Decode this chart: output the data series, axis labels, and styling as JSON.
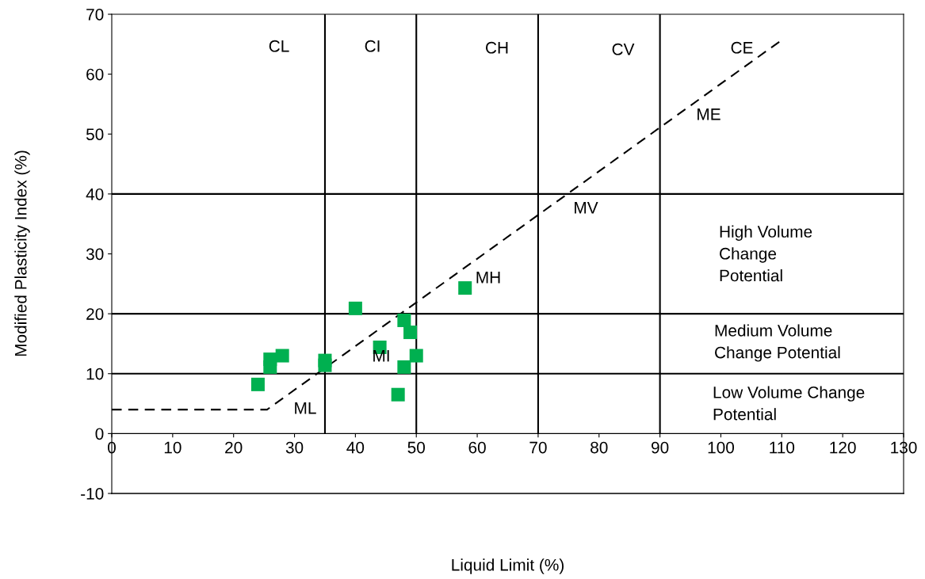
{
  "chart_data": {
    "type": "scatter",
    "xlabel": "Liquid Limit (%)",
    "ylabel": "Modified Plasticity Index (%)",
    "xlim": [
      0,
      130
    ],
    "ylim": [
      -10,
      70
    ],
    "xticks": [
      0,
      10,
      20,
      30,
      40,
      50,
      60,
      70,
      80,
      90,
      100,
      110,
      120,
      130
    ],
    "yticks": [
      -10,
      0,
      10,
      20,
      30,
      40,
      50,
      60,
      70
    ],
    "grid": false,
    "legend": false,
    "series": [
      {
        "color": "#00b050",
        "marker": "square",
        "x": [
          24,
          26,
          26,
          28,
          35,
          35,
          40,
          44,
          48,
          49,
          50,
          48,
          47,
          58
        ],
        "values": [
          8.2,
          12.4,
          11.1,
          13,
          12.2,
          11.4,
          20.9,
          14.4,
          18.9,
          16.9,
          13,
          11.1,
          6.5,
          24.3
        ]
      },
      {
        "type": "line",
        "color": "#000000",
        "marker": "none",
        "line_style": "dashed",
        "x": [
          0,
          25.5,
          110
        ],
        "values": [
          4,
          4,
          65.7
        ]
      }
    ],
    "ref_lines": [
      {
        "axis": "x",
        "value": 35,
        "color": "#000000"
      },
      {
        "axis": "x",
        "value": 50,
        "color": "#000000"
      },
      {
        "axis": "x",
        "value": 70,
        "color": "#000000"
      },
      {
        "axis": "x",
        "value": 90,
        "color": "#000000"
      },
      {
        "axis": "y",
        "value": 10,
        "color": "#000000"
      },
      {
        "axis": "y",
        "value": 20,
        "color": "#000000"
      },
      {
        "axis": "y",
        "value": 40,
        "color": "#000000"
      }
    ],
    "annotations": [
      "CL",
      "CI",
      "CH",
      "CV",
      "CE",
      "ME",
      "MV",
      "MH",
      "MI",
      "ML",
      "High Volume\nChange\nPotential",
      "Medium Volume\nChange Potential",
      "Low Volume Change\nPotential"
    ]
  }
}
